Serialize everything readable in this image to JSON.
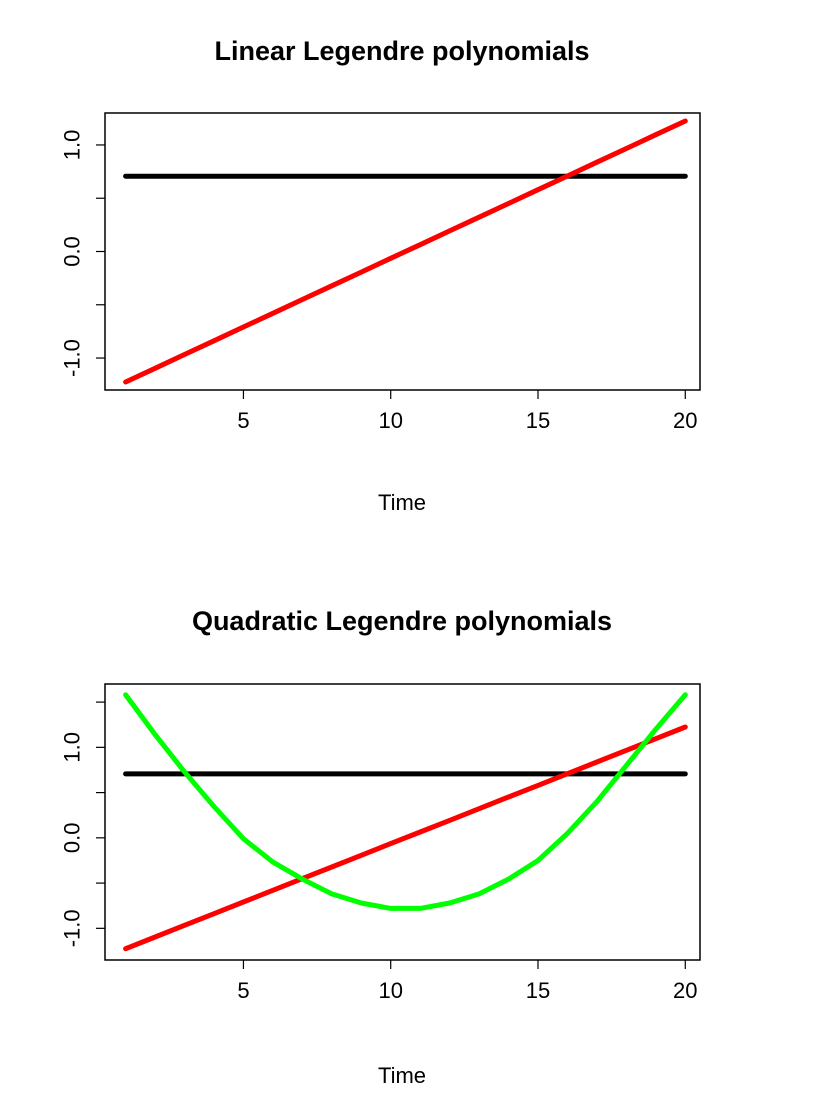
{
  "chart_data": [
    {
      "type": "line",
      "title": "Linear Legendre polynomials",
      "xlabel": "Time",
      "ylabel": "",
      "xlim": [
        0.3,
        20.5
      ],
      "ylim": [
        -1.3,
        1.3
      ],
      "xticks": [
        5,
        10,
        15,
        20
      ],
      "xtick_labels": [
        "5",
        "10",
        "15",
        "20"
      ],
      "yticks": [
        -1.0,
        -0.5,
        0.0,
        0.5,
        1.0
      ],
      "ytick_labels": [
        "-1.0",
        "",
        "0.0",
        "",
        "1.0"
      ],
      "grid": false,
      "legend": "none",
      "x": [
        1,
        2,
        3,
        4,
        5,
        6,
        7,
        8,
        9,
        10,
        11,
        12,
        13,
        14,
        15,
        16,
        17,
        18,
        19,
        20
      ],
      "series": [
        {
          "color": "#000000",
          "values": [
            0.707,
            0.707,
            0.707,
            0.707,
            0.707,
            0.707,
            0.707,
            0.707,
            0.707,
            0.707,
            0.707,
            0.707,
            0.707,
            0.707,
            0.707,
            0.707,
            0.707,
            0.707,
            0.707,
            0.707
          ]
        },
        {
          "color": "#ff0000",
          "values": [
            -1.225,
            -1.096,
            -0.967,
            -0.838,
            -0.709,
            -0.58,
            -0.451,
            -0.322,
            -0.193,
            -0.064,
            0.064,
            0.193,
            0.322,
            0.451,
            0.58,
            0.709,
            0.838,
            0.967,
            1.096,
            1.225
          ]
        }
      ]
    },
    {
      "type": "line",
      "title": "Quadratic Legendre polynomials",
      "xlabel": "Time",
      "ylabel": "",
      "xlim": [
        0.3,
        20.5
      ],
      "ylim": [
        -1.35,
        1.7
      ],
      "xticks": [
        5,
        10,
        15,
        20
      ],
      "xtick_labels": [
        "5",
        "10",
        "15",
        "20"
      ],
      "yticks": [
        -1.0,
        -0.5,
        0.0,
        0.5,
        1.0,
        1.5
      ],
      "ytick_labels": [
        "-1.0",
        "",
        "0.0",
        "",
        "1.0",
        ""
      ],
      "grid": false,
      "legend": "none",
      "x": [
        1,
        2,
        3,
        4,
        5,
        6,
        7,
        8,
        9,
        10,
        11,
        12,
        13,
        14,
        15,
        16,
        17,
        18,
        19,
        20
      ],
      "series": [
        {
          "color": "#000000",
          "values": [
            0.707,
            0.707,
            0.707,
            0.707,
            0.707,
            0.707,
            0.707,
            0.707,
            0.707,
            0.707,
            0.707,
            0.707,
            0.707,
            0.707,
            0.707,
            0.707,
            0.707,
            0.707,
            0.707,
            0.707
          ]
        },
        {
          "color": "#ff0000",
          "values": [
            -1.225,
            -1.096,
            -0.967,
            -0.838,
            -0.709,
            -0.58,
            -0.451,
            -0.322,
            -0.193,
            -0.064,
            0.064,
            0.193,
            0.322,
            0.451,
            0.58,
            0.709,
            0.838,
            0.967,
            1.096,
            1.225
          ]
        },
        {
          "color": "#00ff00",
          "values": [
            1.581,
            1.141,
            0.729,
            0.346,
            -0.009,
            -0.268,
            -0.456,
            -0.62,
            -0.72,
            -0.78,
            -0.78,
            -0.72,
            -0.62,
            -0.456,
            -0.25,
            0.05,
            0.4,
            0.8,
            1.2,
            1.581
          ]
        }
      ]
    }
  ]
}
